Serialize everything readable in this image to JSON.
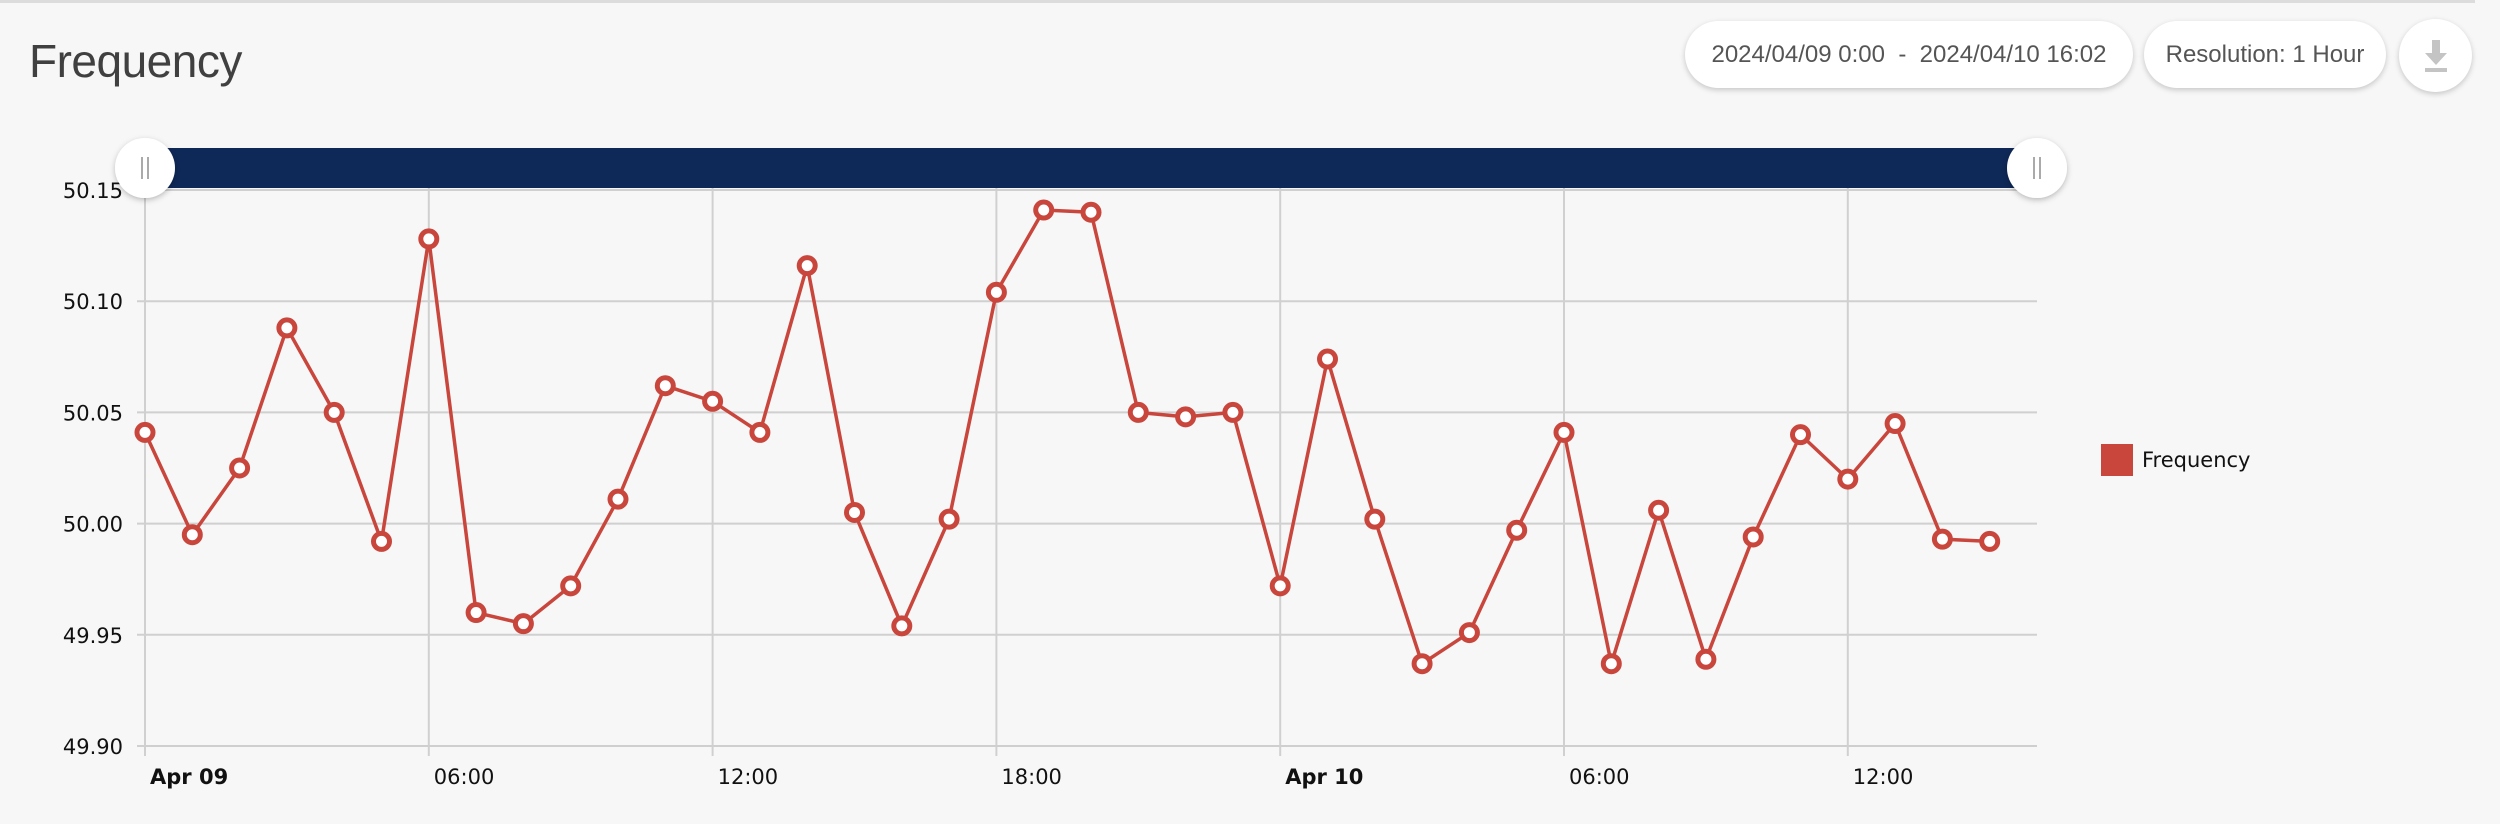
{
  "header": {
    "title": "Frequency",
    "date_range": "2024/04/09 0:00  -  2024/04/10 16:02",
    "resolution": "Resolution: 1 Hour",
    "download_icon": "download-icon"
  },
  "navigator": {
    "color": "#0e2857",
    "handle_icon": "grip-lines-icon"
  },
  "chart_data": {
    "type": "line",
    "title": "",
    "xlabel": "",
    "ylabel": "",
    "ylim": [
      49.9,
      50.15
    ],
    "yticks": [
      "50.15",
      "50.10",
      "50.05",
      "50.00",
      "49.95",
      "49.90"
    ],
    "xticks": [
      {
        "hour": 0,
        "label": "Apr 09",
        "bold": true
      },
      {
        "hour": 6,
        "label": "06:00",
        "bold": false
      },
      {
        "hour": 12,
        "label": "12:00",
        "bold": false
      },
      {
        "hour": 18,
        "label": "18:00",
        "bold": false
      },
      {
        "hour": 24,
        "label": "Apr 10",
        "bold": true
      },
      {
        "hour": 30,
        "label": "06:00",
        "bold": false
      },
      {
        "hour": 36,
        "label": "12:00",
        "bold": false
      }
    ],
    "xlim_hours_from_start": [
      0,
      40
    ],
    "x_start": "2024-04-09 00:00",
    "grid": true,
    "legend": "right",
    "series": [
      {
        "name": "Frequency",
        "color": "#c9463d",
        "x": [
          "2024-04-09 00:00",
          "2024-04-09 01:00",
          "2024-04-09 02:00",
          "2024-04-09 03:00",
          "2024-04-09 04:00",
          "2024-04-09 05:00",
          "2024-04-09 06:00",
          "2024-04-09 07:00",
          "2024-04-09 08:00",
          "2024-04-09 09:00",
          "2024-04-09 10:00",
          "2024-04-09 11:00",
          "2024-04-09 12:00",
          "2024-04-09 13:00",
          "2024-04-09 14:00",
          "2024-04-09 15:00",
          "2024-04-09 16:00",
          "2024-04-09 17:00",
          "2024-04-09 18:00",
          "2024-04-09 19:00",
          "2024-04-09 20:00",
          "2024-04-09 21:00",
          "2024-04-09 22:00",
          "2024-04-09 23:00",
          "2024-04-10 00:00",
          "2024-04-10 01:00",
          "2024-04-10 02:00",
          "2024-04-10 03:00",
          "2024-04-10 04:00",
          "2024-04-10 05:00",
          "2024-04-10 06:00",
          "2024-04-10 07:00",
          "2024-04-10 08:00",
          "2024-04-10 09:00",
          "2024-04-10 10:00",
          "2024-04-10 11:00",
          "2024-04-10 12:00",
          "2024-04-10 13:00",
          "2024-04-10 14:00",
          "2024-04-10 15:00"
        ],
        "values": [
          50.041,
          49.995,
          50.025,
          50.088,
          50.05,
          49.992,
          50.128,
          49.96,
          49.955,
          49.972,
          50.011,
          50.062,
          50.055,
          50.041,
          50.116,
          50.005,
          49.954,
          50.002,
          50.104,
          50.141,
          50.14,
          50.05,
          50.048,
          50.05,
          49.972,
          50.074,
          50.002,
          49.937,
          49.951,
          49.997,
          50.041,
          49.937,
          50.006,
          49.939,
          49.994,
          50.04,
          50.02,
          50.045,
          49.993,
          49.992
        ]
      }
    ]
  }
}
